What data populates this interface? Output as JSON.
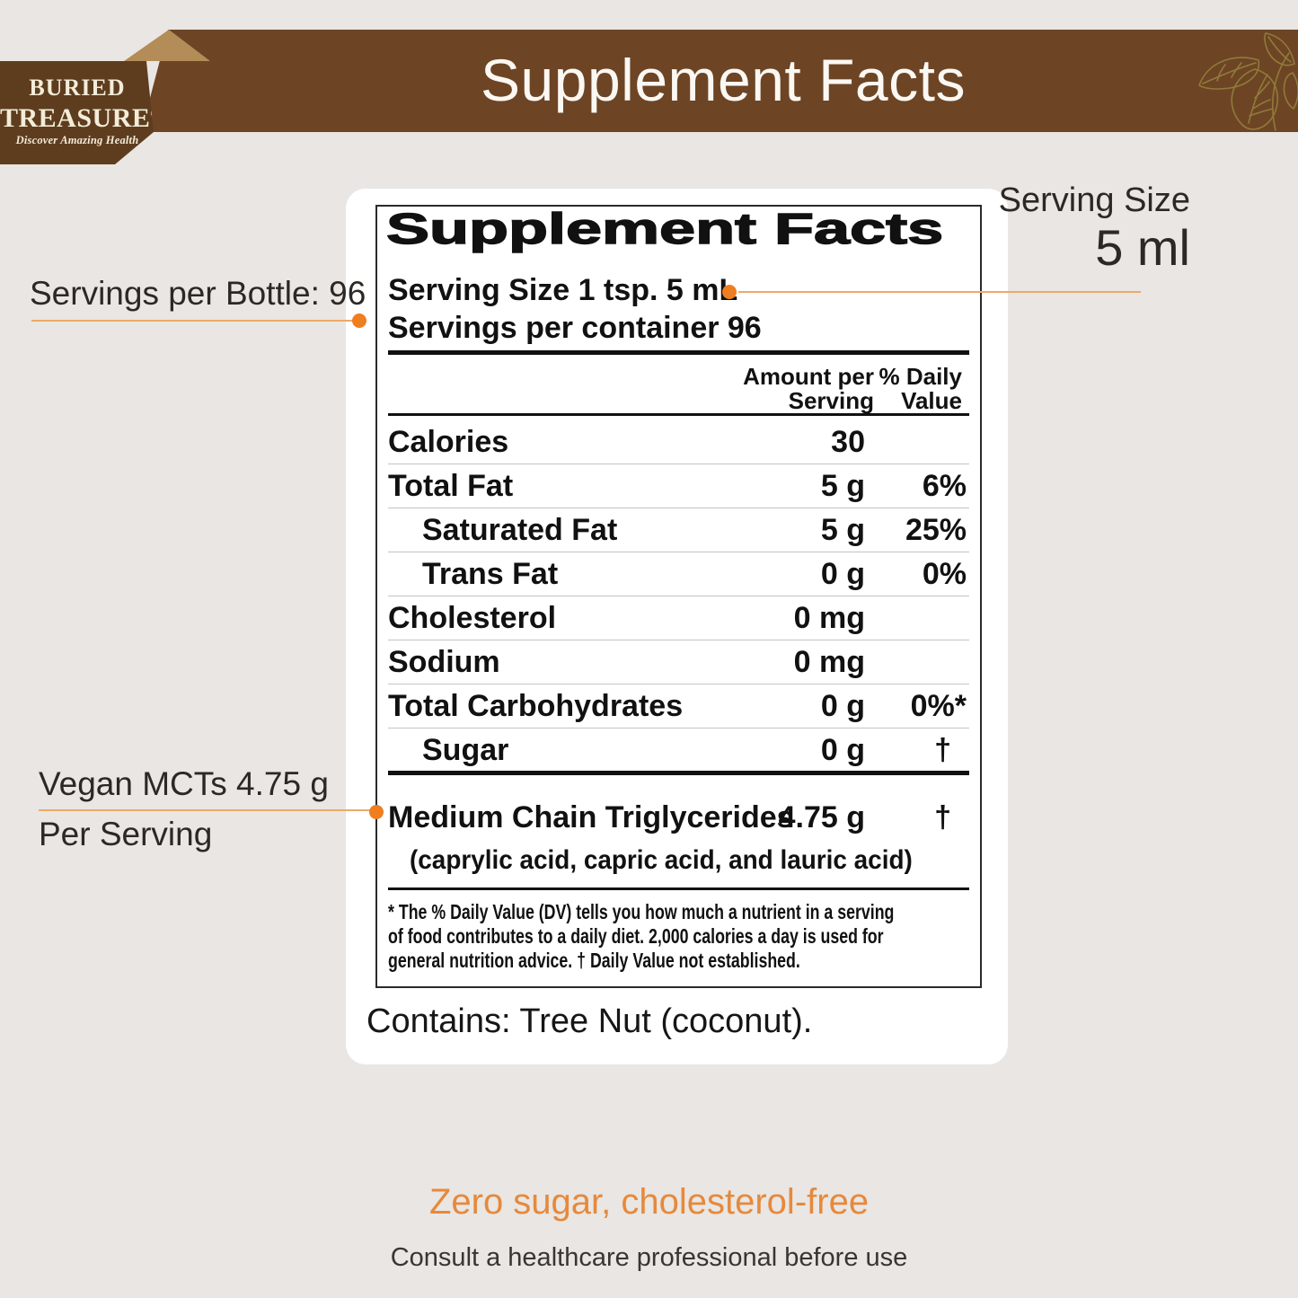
{
  "colors": {
    "bg": "#e9e6e3",
    "banner": "#6d4525",
    "ribbon": "#5e3d1f",
    "fold": "#b48c58",
    "accent": "#ee7e20",
    "line": "#ecaa67",
    "highlight": "#e6893c"
  },
  "header": {
    "banner_title": "Supplement Facts",
    "logo": {
      "line1": "BURIED",
      "line2": "TREASURE",
      "reg_mark": "®",
      "tagline": "Discover Amazing Health"
    }
  },
  "callouts": {
    "servings_per_bottle": "Servings per Bottle: 96",
    "serving_size_label": "Serving Size",
    "serving_size_value": "5 ml",
    "vegan_mcts_line1": "Vegan MCTs 4.75 g",
    "vegan_mcts_line2": "Per Serving"
  },
  "panel": {
    "title": "Supplement Facts",
    "serving_size_line": "Serving Size 1 tsp. 5 mL",
    "servings_line": "Servings per container 96",
    "col_headers": {
      "amount_line1": "Amount per",
      "amount_line2": "Serving",
      "dv_line1": "% Daily",
      "dv_line2": "Value"
    },
    "rows": [
      {
        "label": "Calories",
        "amount": "30",
        "dv": "",
        "indent": false
      },
      {
        "label": "Total Fat",
        "amount": "5 g",
        "dv": "6%",
        "indent": false
      },
      {
        "label": "Saturated Fat",
        "amount": "5 g",
        "dv": "25%",
        "indent": true
      },
      {
        "label": "Trans Fat",
        "amount": "0 g",
        "dv": "0%",
        "indent": true
      },
      {
        "label": "Cholesterol",
        "amount": "0 mg",
        "dv": "",
        "indent": false
      },
      {
        "label": "Sodium",
        "amount": "0 mg",
        "dv": "",
        "indent": false
      },
      {
        "label": "Total Carbohydrates",
        "amount": "0 g",
        "dv": "0%*",
        "indent": false
      },
      {
        "label": "Sugar",
        "amount": "0 g",
        "dv": "†",
        "indent": true
      }
    ],
    "mct_row": {
      "label": "Medium Chain Triglycerides",
      "amount": "4.75 g",
      "dv": "†",
      "subline": "(caprylic acid, capric acid, and lauric acid)"
    },
    "footnote": "* The % Daily Value (DV) tells you how much a nutrient in a serving\nof food contributes to a daily diet. 2,000 calories a day is used for\ngeneral nutrition advice.   † Daily Value not established.",
    "contains": "Contains: Tree Nut (coconut)."
  },
  "footer": {
    "highlight": "Zero sugar, cholesterol-free",
    "disclaimer": "Consult a healthcare professional before use"
  }
}
